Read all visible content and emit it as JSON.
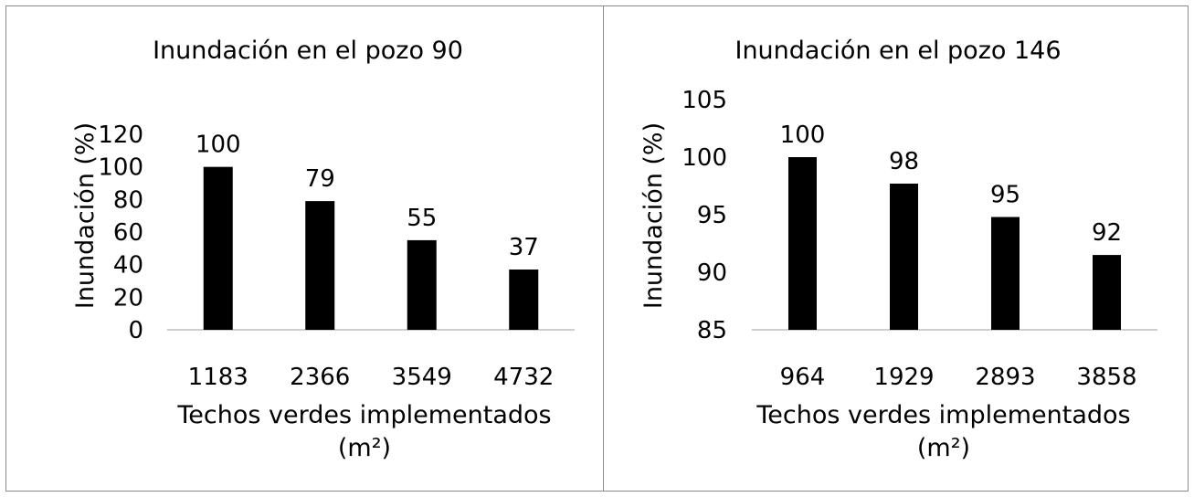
{
  "colors": {
    "bar": "#000000",
    "axis": "#bfbfbf",
    "text": "#000000",
    "border": "#8c8c8c"
  },
  "chart_data": [
    {
      "type": "bar",
      "title": "Inundación en el pozo 90",
      "xlabel_line1": "Techos verdes implementados",
      "xlabel_line2": "(m²)",
      "ylabel": "Inundación (%)",
      "categories": [
        "1183",
        "2366",
        "3549",
        "4732"
      ],
      "values": [
        100,
        79,
        55,
        37
      ],
      "data_labels": [
        "100",
        "79",
        "55",
        "37"
      ],
      "ylim": [
        0,
        120
      ],
      "yticks": [
        "0",
        "20",
        "40",
        "60",
        "80",
        "100",
        "120"
      ],
      "ytick_values": [
        0,
        20,
        40,
        60,
        80,
        100,
        120
      ],
      "grid": false
    },
    {
      "type": "bar",
      "title": "Inundación en el pozo 146",
      "xlabel_line1": "Techos verdes implementados",
      "xlabel_line2": "(m²)",
      "ylabel": "Inundación (%)",
      "categories": [
        "964",
        "1929",
        "2893",
        "3858"
      ],
      "values": [
        100,
        97.7,
        94.8,
        91.5
      ],
      "data_labels": [
        "100",
        "98",
        "95",
        "92"
      ],
      "ylim": [
        85,
        105
      ],
      "yticks": [
        "85",
        "90",
        "95",
        "100",
        "105"
      ],
      "ytick_values": [
        85,
        90,
        95,
        100,
        105
      ],
      "grid": false
    }
  ]
}
